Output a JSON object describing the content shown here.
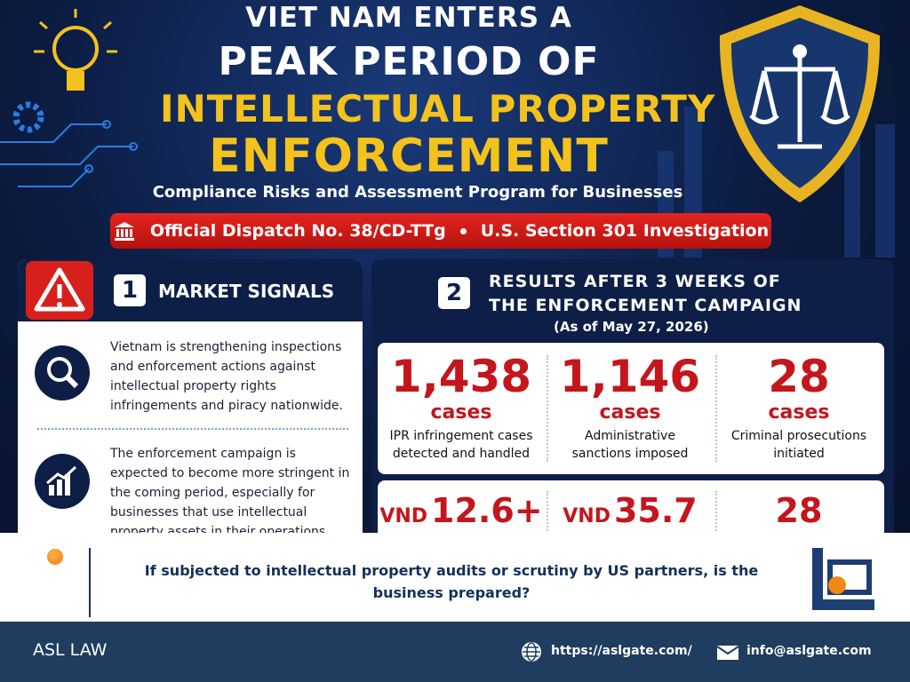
{
  "infographic": {
    "title_lines": [
      "VIET NAM ENTERS A",
      "PEAK PERIOD OF",
      "INTELLECTUAL PROPERTY",
      "ENFORCEMENT"
    ],
    "subtitle": "Compliance Risks and Assessment Program for Businesses",
    "banner": [
      "Official Dispatch No. 38/CD-TTg",
      "U.S. Section 301 Investigation"
    ],
    "section1": {
      "number": "1",
      "title": "MARKET SIGNALS",
      "paragraphs": [
        "Vietnam is strengthening inspections and enforcement actions against intellectual property rights infringements and piracy nationwide.",
        "The enforcement campaign is expected to become more stringent in the coming period, especially for businesses that use intellectual property assets in their operations."
      ]
    },
    "section2": {
      "number": "2",
      "title_lines": [
        "RESULTS AFTER 3 WEEKS OF",
        "THE ENFORCEMENT CAMPAIGN"
      ],
      "date": "(As of May 27, 2026)",
      "stats": [
        {
          "value": "1,438",
          "unit": "cases",
          "label": "IPR infringement cases detected and handled"
        },
        {
          "value": "1,146",
          "unit": "cases",
          "label": "Administrative sanctions imposed"
        },
        {
          "value": "28",
          "unit": "cases",
          "label": "Criminal prosecutions initiated"
        }
      ],
      "stats2": [
        {
          "currency": "VND",
          "value": "12.6+"
        },
        {
          "currency": "VND",
          "value": "35.7"
        },
        {
          "value": "28"
        }
      ]
    }
  },
  "question": "If subjected to intellectual property audits or scrutiny by US partners, is the business prepared?",
  "footer": {
    "brand": "ASL LAW",
    "website": "https://aslgate.com/",
    "email": "info@aslgate.com"
  }
}
